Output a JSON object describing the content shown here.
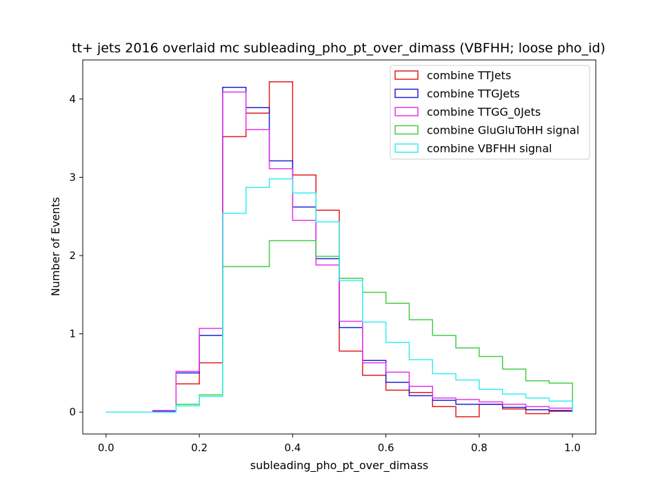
{
  "chart_data": {
    "type": "step-histogram",
    "title": "tt+ jets 2016 overlaid mc subleading_pho_pt_over_dimass (VBFHH; loose pho_id)",
    "xlabel": "subleading_pho_pt_over_dimass",
    "ylabel": "Number of Events",
    "xlim": [
      -0.05,
      1.05
    ],
    "ylim": [
      -0.28,
      4.5
    ],
    "xticks": [
      0.0,
      0.2,
      0.4,
      0.6,
      0.8,
      1.0
    ],
    "xtick_labels": [
      "0.0",
      "0.2",
      "0.4",
      "0.6",
      "0.8",
      "1.0"
    ],
    "yticks": [
      0,
      1,
      2,
      3,
      4
    ],
    "ytick_labels": [
      "0",
      "1",
      "2",
      "3",
      "4"
    ],
    "legend_position": "top-right",
    "bin_edges": [
      0.0,
      0.05,
      0.1,
      0.15,
      0.2,
      0.25,
      0.3,
      0.35,
      0.4,
      0.45,
      0.5,
      0.55,
      0.6,
      0.65,
      0.7,
      0.75,
      0.8,
      0.85,
      0.9,
      0.95,
      1.0
    ],
    "series": [
      {
        "name": "combine TTJets",
        "color": "#e41a1c",
        "values": [
          0.0,
          0.0,
          0.0,
          0.36,
          0.63,
          3.52,
          3.82,
          4.22,
          3.03,
          2.58,
          0.78,
          0.47,
          0.28,
          0.25,
          0.07,
          -0.06,
          0.1,
          0.04,
          -0.02,
          0.01
        ]
      },
      {
        "name": "combine TTGJets",
        "color": "#1f1fd6",
        "values": [
          0.0,
          0.0,
          0.01,
          0.5,
          0.98,
          4.15,
          3.89,
          3.21,
          2.62,
          1.96,
          1.08,
          0.66,
          0.38,
          0.21,
          0.15,
          0.1,
          0.1,
          0.06,
          0.03,
          0.02
        ]
      },
      {
        "name": "combine TTGG_0Jets",
        "color": "#e633e6",
        "values": [
          0.0,
          0.0,
          0.02,
          0.52,
          1.07,
          4.09,
          3.61,
          3.11,
          2.45,
          1.88,
          1.16,
          0.63,
          0.51,
          0.33,
          0.18,
          0.16,
          0.13,
          0.1,
          0.07,
          0.05
        ]
      },
      {
        "name": "combine GluGluToHH signal",
        "color": "#44cc44",
        "values": [
          0.0,
          0.0,
          0.0,
          0.1,
          0.22,
          1.86,
          1.86,
          2.19,
          2.19,
          1.99,
          1.71,
          1.53,
          1.39,
          1.18,
          0.98,
          0.82,
          0.71,
          0.55,
          0.4,
          0.37
        ]
      },
      {
        "name": "combine VBFHH signal",
        "color": "#33eeee",
        "values": [
          0.0,
          0.0,
          0.0,
          0.08,
          0.2,
          2.54,
          2.87,
          2.98,
          2.8,
          2.43,
          1.68,
          1.15,
          0.89,
          0.67,
          0.49,
          0.41,
          0.29,
          0.23,
          0.18,
          0.14
        ]
      }
    ]
  }
}
